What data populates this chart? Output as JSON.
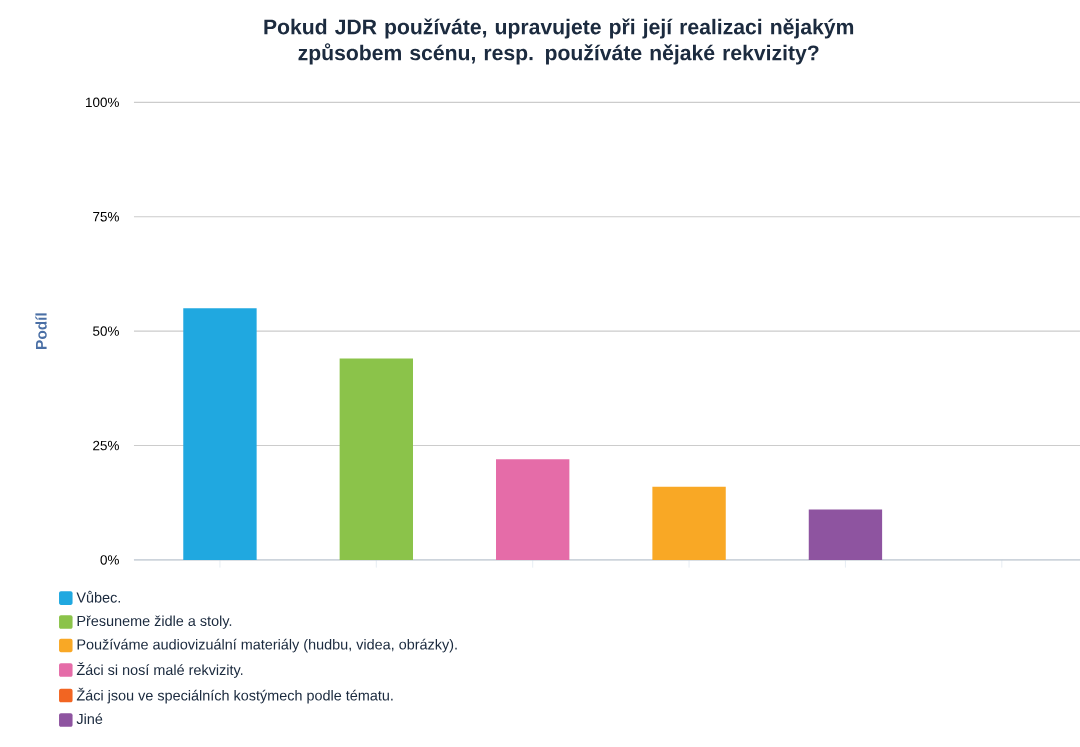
{
  "chart_data": {
    "type": "bar",
    "title": "Pokud JDR používáte, upravujete při její realizaci nějakým způsobem scénu, resp. používáte nějaké rekvizity?",
    "ylabel": "Podíl",
    "categories": [
      null,
      null,
      null,
      null,
      null,
      null
    ],
    "series": [
      {
        "name": "Vůbec.",
        "color": "#20a8e0",
        "values": [
          55,
          null,
          null,
          null,
          null,
          null
        ]
      },
      {
        "name": "Přesuneme židle a stoly.",
        "color": "#8bc34a",
        "values": [
          null,
          44,
          null,
          null,
          null,
          null
        ]
      },
      {
        "name": "Používáme audiovizuální materiály (hudbu, videa, obrázky).",
        "color": "#f9a825",
        "values": [
          null,
          null,
          null,
          16,
          null,
          null
        ]
      },
      {
        "name": "Žáci si nosí malé rekvizity.",
        "color": "#e56ca8",
        "values": [
          null,
          null,
          22,
          null,
          null,
          null
        ]
      },
      {
        "name": "Žáci jsou ve speciálních kostýmech podle tématu.",
        "color": "#f26522",
        "values": [
          null,
          null,
          null,
          null,
          null,
          0
        ]
      },
      {
        "name": "Jiné",
        "color": "#8e54a0",
        "values": [
          null,
          null,
          null,
          null,
          11,
          null
        ]
      }
    ],
    "ylim": [
      0,
      100
    ],
    "yticks": [
      {
        "value": 0,
        "label": "0%"
      },
      {
        "value": 25,
        "label": "25%"
      },
      {
        "value": 50,
        "label": "50%"
      },
      {
        "value": 75,
        "label": "75%"
      },
      {
        "value": 100,
        "label": "100%"
      }
    ],
    "grid": "y",
    "legend": "bottom"
  }
}
